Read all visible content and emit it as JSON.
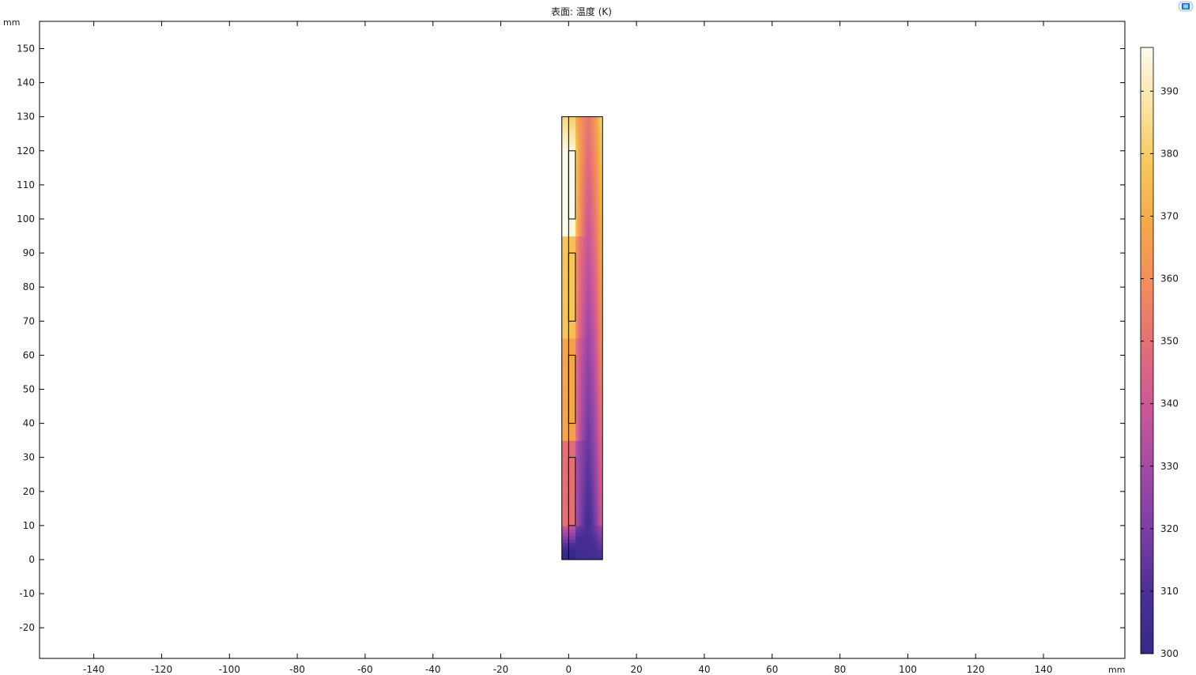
{
  "plot": {
    "title": "表面: 温度 (K)",
    "x_unit": "mm",
    "y_unit": "mm"
  },
  "chart_data": {
    "type": "heatmap",
    "title": "表面: 温度 (K)",
    "xlabel": "mm",
    "ylabel": "mm",
    "xlim": [
      -156,
      164
    ],
    "ylim": [
      -29,
      158
    ],
    "x_ticks": [
      -140,
      -120,
      -100,
      -80,
      -60,
      -40,
      -20,
      0,
      20,
      40,
      60,
      80,
      100,
      120,
      140
    ],
    "y_ticks": [
      -20,
      -10,
      0,
      10,
      20,
      30,
      40,
      50,
      60,
      70,
      80,
      90,
      100,
      110,
      120,
      130,
      140,
      150
    ],
    "grid": false,
    "colormap": [
      "#352a87",
      "#4a2f95",
      "#7a3ea3",
      "#a04aa5",
      "#c85798",
      "#e26c7b",
      "#f08b5e",
      "#f4a64d",
      "#f5c55a",
      "#f9e3a1",
      "#fdfaee"
    ],
    "colorbar": {
      "min": 300,
      "max": 397,
      "ticks": [
        300,
        310,
        320,
        330,
        340,
        350,
        360,
        370,
        380,
        390
      ]
    },
    "geometry": {
      "domain": {
        "x": [
          -2,
          10
        ],
        "y": [
          0,
          130
        ]
      },
      "inner_wall_x": 0,
      "heaters": [
        {
          "x": [
            0,
            2
          ],
          "y": [
            100,
            120
          ],
          "temperature": 397
        },
        {
          "x": [
            0,
            2
          ],
          "y": [
            70,
            90
          ],
          "temperature": 378
        },
        {
          "x": [
            0,
            2
          ],
          "y": [
            40,
            60
          ],
          "temperature": 368
        },
        {
          "x": [
            0,
            2
          ],
          "y": [
            10,
            30
          ],
          "temperature": 350
        }
      ]
    }
  }
}
